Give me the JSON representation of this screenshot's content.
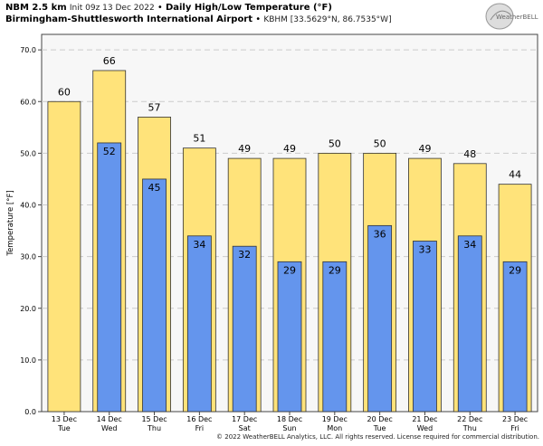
{
  "header": {
    "model": "NBM 2.5 km",
    "init": "Init 09z 13 Dec 2022",
    "sep": "•",
    "product": "Daily High/Low Temperature (°F)",
    "station": "Birmingham-Shuttlesworth International Airport",
    "station_info": "KBHM [33.5629°N, 86.7535°W]"
  },
  "logo": {
    "text": "WeatherBELL"
  },
  "footer": "© 2022 WeatherBELL Analytics, LLC. All rights reserved. License required for commercial distribution.",
  "colors": {
    "high": "#ffe37a",
    "low": "#6495ed",
    "plot_bg": "#f7f7f7"
  },
  "chart_data": {
    "type": "bar",
    "ylabel": "Temperature [°F]",
    "ylim": [
      0,
      73
    ],
    "yticks": [
      0,
      10,
      20,
      30,
      40,
      50,
      60,
      70
    ],
    "ytick_labels": [
      "0.0",
      "10.0",
      "20.0",
      "30.0",
      "40.0",
      "50.0",
      "60.0",
      "70.0"
    ],
    "grid": true,
    "categories": [
      [
        "13 Dec",
        "Tue"
      ],
      [
        "14 Dec",
        "Wed"
      ],
      [
        "15 Dec",
        "Thu"
      ],
      [
        "16 Dec",
        "Fri"
      ],
      [
        "17 Dec",
        "Sat"
      ],
      [
        "18 Dec",
        "Sun"
      ],
      [
        "19 Dec",
        "Mon"
      ],
      [
        "20 Dec",
        "Tue"
      ],
      [
        "21 Dec",
        "Wed"
      ],
      [
        "22 Dec",
        "Thu"
      ],
      [
        "23 Dec",
        "Fri"
      ]
    ],
    "series": [
      {
        "values": [
          60,
          66,
          57,
          51,
          49,
          49,
          50,
          50,
          49,
          48,
          44
        ]
      },
      {
        "values": [
          null,
          52,
          45,
          34,
          32,
          29,
          29,
          36,
          33,
          34,
          29
        ]
      }
    ]
  }
}
